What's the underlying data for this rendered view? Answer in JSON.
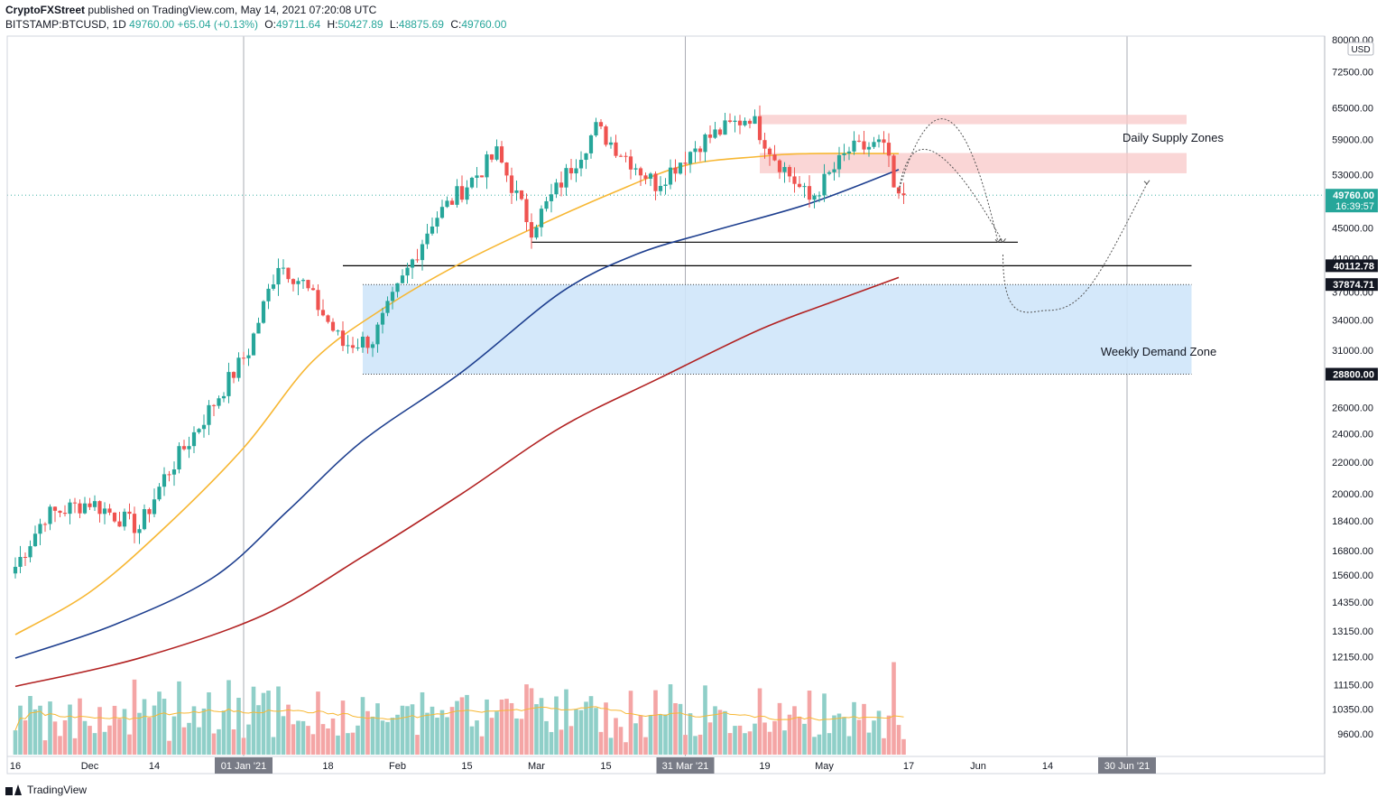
{
  "header": {
    "publisher": "CryptoFXStreet",
    "published_text": "published on TradingView.com, May 14, 2021 07:20:08 UTC",
    "symbol": "BITSTAMP:BTCUSD, 1D",
    "last": "49760.00",
    "change": "+65.04 (+0.13%)",
    "o_label": "O:",
    "o_value": "49711.64",
    "h_label": "H:",
    "h_value": "50427.89",
    "l_label": "L:",
    "l_value": "48875.69",
    "c_label": "C:",
    "c_value": "49760.00"
  },
  "footer": {
    "brand": "TradingView"
  },
  "colors": {
    "up": "#26a69a",
    "down": "#ef5350",
    "up_vol": "#8fcfc8",
    "down_vol": "#f4a5a5",
    "ma50": "#f7b733",
    "ma100": "#1e3f8f",
    "ma200": "#b22222",
    "supply_zone": "#f8c8c8",
    "demand_zone": "#cfe5f9",
    "price_tag": "#26a69a"
  },
  "chart_data": {
    "type": "candlestick",
    "title": "BITSTAMP:BTCUSD, 1D",
    "ylabel": "USD",
    "scale": "logarithmic",
    "ylim": [
      9000,
      80000
    ],
    "y_ticks": [
      "80000.00",
      "72500.00",
      "65000.00",
      "59000.00",
      "53000.00",
      "45000.00",
      "41000.00",
      "37000.00",
      "34000.00",
      "31000.00",
      "28800.00",
      "26000.00",
      "24000.00",
      "22000.00",
      "20000.00",
      "18400.00",
      "16800.00",
      "15600.00",
      "14350.00",
      "13150.00",
      "12150.00",
      "11150.00",
      "10350.00",
      "9600.00"
    ],
    "y_tick_values": [
      80000,
      72500,
      65000,
      59000,
      53000,
      45000,
      41000,
      37000,
      34000,
      31000,
      28800,
      26000,
      24000,
      22000,
      20000,
      18400,
      16800,
      15600,
      14350,
      13150,
      12150,
      11150,
      10350,
      9600
    ],
    "x_ticks": [
      "16",
      "Dec",
      "14",
      "01 Jan '21",
      "18",
      "Feb",
      "15",
      "Mar",
      "15",
      "31 Mar '21",
      "19",
      "May",
      "17",
      "Jun",
      "14",
      "30 Jun '21"
    ],
    "x_tick_days": [
      0,
      15,
      28,
      46,
      63,
      77,
      91,
      105,
      119,
      135,
      151,
      163,
      180,
      194,
      208,
      224
    ],
    "highlighted_x_ticks": [
      "01 Jan '21",
      "31 Mar '21",
      "30 Jun '21"
    ],
    "price_labels": [
      {
        "value": 49760.0,
        "text": "49760.00",
        "subtext": "16:39:57",
        "kind": "last"
      },
      {
        "value": 40112.78,
        "text": "40112.78",
        "kind": "level"
      },
      {
        "value": 37874.71,
        "text": "37874.71",
        "kind": "level"
      },
      {
        "value": 28800.0,
        "text": "28800.00",
        "kind": "level"
      }
    ],
    "levels": [
      {
        "value": 43100,
        "from_day": 104,
        "to_day": 202
      },
      {
        "value": 40112.78,
        "from_day": 66,
        "to_day": 237
      },
      {
        "value": 37874.71,
        "from_day": 70,
        "to_day": 237,
        "dotted": true
      },
      {
        "value": 28800.0,
        "from_day": 70,
        "to_day": 237,
        "dotted": true
      }
    ],
    "zones": [
      {
        "name": "Daily Supply Zones",
        "low": 61800,
        "high": 63600,
        "from_day": 150,
        "to_day": 236,
        "kind": "supply"
      },
      {
        "name": "Daily Supply Zones",
        "low": 53200,
        "high": 56600,
        "from_day": 150,
        "to_day": 236,
        "kind": "supply"
      },
      {
        "name": "Weekly Demand Zone",
        "low": 28800,
        "high": 37874.71,
        "from_day": 70,
        "to_day": 237,
        "kind": "demand"
      }
    ],
    "annotations": [
      "Daily Supply Zones",
      "Weekly Demand Zone"
    ],
    "projections": [
      {
        "points": [
          [
            178,
            50400
          ],
          [
            188,
            62500
          ],
          [
            198,
            43100
          ]
        ]
      },
      {
        "points": [
          [
            178,
            50400
          ],
          [
            185,
            56800
          ],
          [
            199,
            43100
          ]
        ]
      },
      {
        "points": [
          [
            199,
            41500
          ],
          [
            208,
            35000
          ],
          [
            220,
            43100
          ],
          [
            228,
            51500
          ]
        ]
      }
    ],
    "candles_start": "2020-11-16",
    "ohlc_anchors": [
      [
        "2020-11-16",
        16000
      ],
      [
        "2020-11-22",
        18700
      ],
      [
        "2020-12-01",
        19500
      ],
      [
        "2020-12-11",
        18000
      ],
      [
        "2020-12-16",
        21000
      ],
      [
        "2020-12-21",
        23500
      ],
      [
        "2020-12-27",
        27000
      ],
      [
        "2021-01-02",
        31000
      ],
      [
        "2021-01-08",
        40500
      ],
      [
        "2021-01-13",
        38000
      ],
      [
        "2021-01-21",
        31500
      ],
      [
        "2021-01-27",
        32000
      ],
      [
        "2021-02-08",
        46000
      ],
      [
        "2021-02-21",
        56500
      ],
      [
        "2021-02-28",
        45000
      ],
      [
        "2021-03-13",
        61000
      ],
      [
        "2021-03-25",
        51500
      ],
      [
        "2021-04-03",
        58500
      ],
      [
        "2021-04-13",
        63500
      ],
      [
        "2021-04-18",
        56000
      ],
      [
        "2021-04-25",
        49000
      ],
      [
        "2021-05-03",
        57000
      ],
      [
        "2021-05-09",
        58000
      ],
      [
        "2021-05-11",
        56000
      ],
      [
        "2021-05-12",
        49500
      ],
      [
        "2021-05-14",
        49760
      ]
    ],
    "ma_lines": [
      {
        "name": "MA 50",
        "anchors": [
          [
            0,
            13000
          ],
          [
            15,
            14800
          ],
          [
            30,
            18000
          ],
          [
            46,
            23000
          ],
          [
            60,
            30000
          ],
          [
            75,
            35500
          ],
          [
            90,
            40500
          ],
          [
            105,
            45200
          ],
          [
            120,
            50000
          ],
          [
            135,
            54500
          ],
          [
            150,
            56000
          ],
          [
            160,
            56500
          ],
          [
            178,
            56500
          ]
        ]
      },
      {
        "name": "MA 100",
        "anchors": [
          [
            0,
            12100
          ],
          [
            20,
            13400
          ],
          [
            40,
            15500
          ],
          [
            55,
            19000
          ],
          [
            70,
            23500
          ],
          [
            90,
            29000
          ],
          [
            110,
            37000
          ],
          [
            125,
            41500
          ],
          [
            140,
            44500
          ],
          [
            160,
            48500
          ],
          [
            178,
            53800
          ]
        ]
      },
      {
        "name": "MA 200",
        "anchors": [
          [
            0,
            11100
          ],
          [
            25,
            12100
          ],
          [
            50,
            13800
          ],
          [
            70,
            16500
          ],
          [
            90,
            20000
          ],
          [
            110,
            24500
          ],
          [
            130,
            28500
          ],
          [
            150,
            33000
          ],
          [
            165,
            36000
          ],
          [
            178,
            38700
          ]
        ]
      }
    ],
    "volume_ma": "Volume MA (yellow line)",
    "volume_note": "Volume histogram along bottom, colored by candle direction"
  }
}
